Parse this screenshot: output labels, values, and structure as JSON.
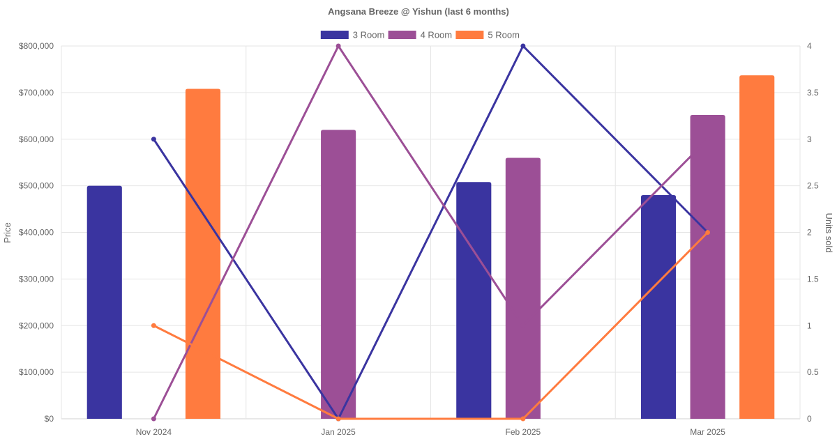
{
  "chart_data": {
    "type": "bar",
    "title": "Angsana Breeze @ Yishun (last 6 months)",
    "categories": [
      "Nov 2024",
      "Jan 2025",
      "Feb 2025",
      "Mar 2025"
    ],
    "y_left": {
      "label": "Price",
      "ylim": [
        0,
        800000
      ],
      "ticks": [
        "$0",
        "$100,000",
        "$200,000",
        "$300,000",
        "$400,000",
        "$500,000",
        "$600,000",
        "$700,000",
        "$800,000"
      ]
    },
    "y_right": {
      "label": "Units sold",
      "ylim": [
        0,
        4
      ],
      "ticks": [
        "0",
        "0.5",
        "1",
        "1.5",
        "2",
        "2.5",
        "3",
        "3.5",
        "4"
      ]
    },
    "series": [
      {
        "name": "3 Room",
        "color": "#3a34a0",
        "price": [
          500000,
          null,
          508000,
          480000
        ],
        "units": [
          3,
          0,
          4,
          2
        ]
      },
      {
        "name": "4 Room",
        "color": "#9c4f96",
        "price": [
          null,
          620000,
          560000,
          652000
        ],
        "units": [
          0,
          4,
          1,
          3
        ]
      },
      {
        "name": "5 Room",
        "color": "#ff7b3f",
        "price": [
          708000,
          null,
          null,
          737000
        ],
        "units": [
          1,
          0,
          0,
          2
        ]
      }
    ],
    "legend": "top-center",
    "grid": true
  }
}
